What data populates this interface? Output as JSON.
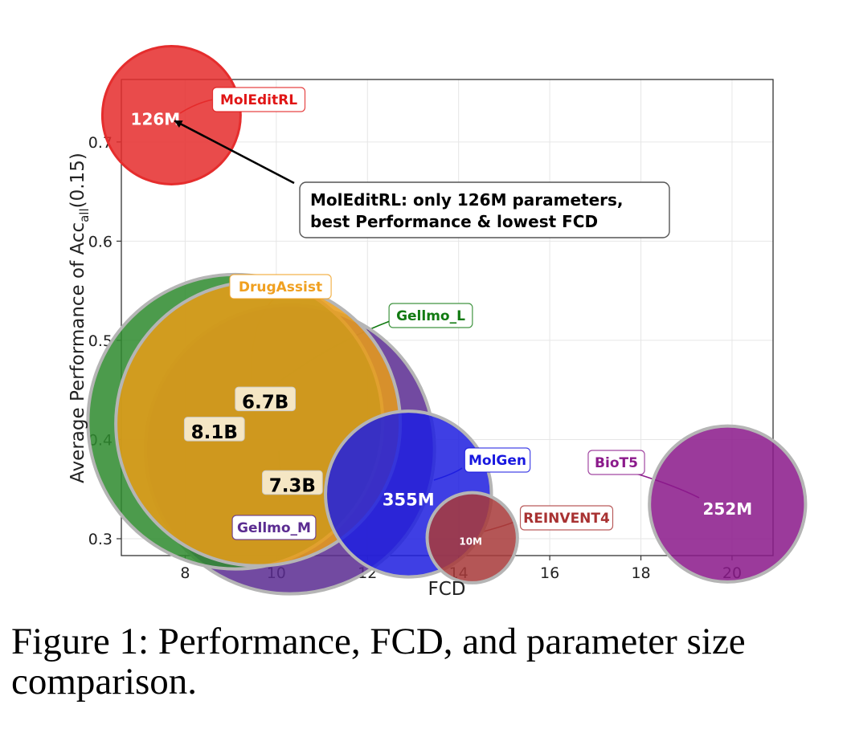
{
  "chart_data": {
    "type": "scatter",
    "title": "",
    "xlabel": "FCD",
    "ylabel": {
      "prefix": "Average Performance of Acc",
      "subscript": "all",
      "suffix": "(0.15)"
    },
    "xlim": [
      6.6,
      20.9
    ],
    "ylim": [
      0.283,
      0.763
    ],
    "xticks": [
      8,
      10,
      12,
      14,
      16,
      18,
      20
    ],
    "yticks": [
      0.3,
      0.4,
      0.5,
      0.6,
      0.7
    ],
    "grid": true,
    "points": [
      {
        "name": "Gellmo_M",
        "x": 10.3,
        "y": 0.39,
        "size_label": "7.3B",
        "params_m": 7300,
        "color": "#5b2c91",
        "label_color": "#5b2c91"
      },
      {
        "name": "Gellmo_L",
        "x": 9.1,
        "y": 0.418,
        "size_label": "8.1B",
        "params_m": 8100,
        "color": "#2e8a2e",
        "label_color": "#127a12"
      },
      {
        "name": "DrugAssist",
        "x": 9.6,
        "y": 0.416,
        "size_label": "6.7B",
        "params_m": 6700,
        "color": "#e89c18",
        "label_color": "#f0a020"
      },
      {
        "name": "MolEditRL",
        "x": 7.7,
        "y": 0.727,
        "size_label": "126M",
        "params_m": 126,
        "color": "#e52d2d",
        "label_color": "#e01515"
      },
      {
        "name": "MolGen",
        "x": 12.9,
        "y": 0.345,
        "size_label": "355M",
        "params_m": 355,
        "color": "#1f1fe0",
        "label_color": "#1818e0"
      },
      {
        "name": "BioT5",
        "x": 19.9,
        "y": 0.335,
        "size_label": "252M",
        "params_m": 252,
        "color": "#8b1a8b",
        "label_color": "#8b1a8b"
      },
      {
        "name": "REINVENT4",
        "x": 14.3,
        "y": 0.301,
        "size_label": "10M",
        "params_m": 10,
        "color": "#a83a3a",
        "label_color": "#a83232"
      }
    ],
    "annotation": {
      "lines": [
        "MolEditRL: only 126M parameters,",
        "best Performance & lowest FCD"
      ],
      "points_to": "MolEditRL"
    }
  },
  "caption": {
    "lines": [
      "Figure 1: Performance, FCD, and parameter size",
      "comparison."
    ]
  }
}
